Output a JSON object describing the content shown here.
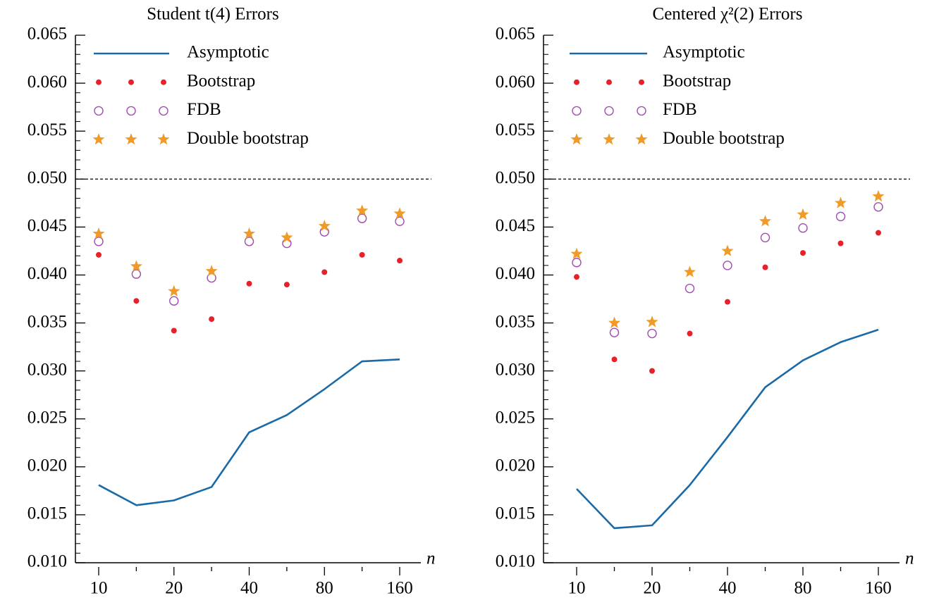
{
  "chart_data": [
    {
      "type": "line",
      "title": "Student t(4) Errors",
      "x_label": "n",
      "categories": [
        "10",
        null,
        "20",
        null,
        "40",
        null,
        "80",
        null,
        "160"
      ],
      "ylim": [
        0.01,
        0.065
      ],
      "yticks": [
        {
          "value": 0.01,
          "label": "0.010"
        },
        {
          "value": 0.015,
          "label": "0.015"
        },
        {
          "value": 0.02,
          "label": "0.020"
        },
        {
          "value": 0.025,
          "label": "0.025"
        },
        {
          "value": 0.03,
          "label": "0.030"
        },
        {
          "value": 0.035,
          "label": "0.035"
        },
        {
          "value": 0.04,
          "label": "0.040"
        },
        {
          "value": 0.045,
          "label": "0.045"
        },
        {
          "value": 0.05,
          "label": "0.050"
        },
        {
          "value": 0.055,
          "label": "0.055"
        },
        {
          "value": 0.06,
          "label": "0.060"
        },
        {
          "value": 0.065,
          "label": "0.065"
        }
      ],
      "reference_line": 0.05,
      "legend": "upper left",
      "series": [
        {
          "name": "Asymptotic",
          "marker": "line",
          "color": "#1a6aa8",
          "values": [
            0.0181,
            0.016,
            0.0165,
            0.0179,
            0.0236,
            0.0254,
            0.0281,
            0.031,
            0.0312
          ]
        },
        {
          "name": "Bootstrap",
          "marker": "dot",
          "color": "#e8202a",
          "values": [
            0.0421,
            0.0373,
            0.0342,
            0.0354,
            0.0391,
            0.039,
            0.0403,
            0.0421,
            0.0415
          ]
        },
        {
          "name": "FDB",
          "marker": "circle",
          "color": "#a04cb0",
          "values": [
            0.0435,
            0.0401,
            0.0373,
            0.0397,
            0.0435,
            0.0433,
            0.0445,
            0.0459,
            0.0456
          ]
        },
        {
          "name": "Double bootstrap",
          "marker": "star",
          "color": "#f09a28",
          "values": [
            0.0443,
            0.0409,
            0.0383,
            0.0404,
            0.0443,
            0.0439,
            0.0451,
            0.0467,
            0.0464
          ]
        }
      ]
    },
    {
      "type": "line",
      "title": "Centered χ²(2) Errors",
      "x_label": "n",
      "categories": [
        "10",
        null,
        "20",
        null,
        "40",
        null,
        "80",
        null,
        "160"
      ],
      "ylim": [
        0.01,
        0.065
      ],
      "yticks": [
        {
          "value": 0.01,
          "label": "0.010"
        },
        {
          "value": 0.015,
          "label": "0.015"
        },
        {
          "value": 0.02,
          "label": "0.020"
        },
        {
          "value": 0.025,
          "label": "0.025"
        },
        {
          "value": 0.03,
          "label": "0.030"
        },
        {
          "value": 0.035,
          "label": "0.035"
        },
        {
          "value": 0.04,
          "label": "0.040"
        },
        {
          "value": 0.045,
          "label": "0.045"
        },
        {
          "value": 0.05,
          "label": "0.050"
        },
        {
          "value": 0.055,
          "label": "0.055"
        },
        {
          "value": 0.06,
          "label": "0.060"
        },
        {
          "value": 0.065,
          "label": "0.065"
        }
      ],
      "reference_line": 0.05,
      "legend": "upper left",
      "series": [
        {
          "name": "Asymptotic",
          "marker": "line",
          "color": "#1a6aa8",
          "values": [
            0.0177,
            0.0136,
            0.0139,
            0.0181,
            0.0231,
            0.0283,
            0.0311,
            0.033,
            0.0343
          ]
        },
        {
          "name": "Bootstrap",
          "marker": "dot",
          "color": "#e8202a",
          "values": [
            0.0398,
            0.0312,
            0.03,
            0.0339,
            0.0372,
            0.0408,
            0.0423,
            0.0433,
            0.0444
          ]
        },
        {
          "name": "FDB",
          "marker": "circle",
          "color": "#a04cb0",
          "values": [
            0.0413,
            0.034,
            0.0339,
            0.0386,
            0.041,
            0.0439,
            0.0449,
            0.0461,
            0.0471
          ]
        },
        {
          "name": "Double bootstrap",
          "marker": "star",
          "color": "#f09a28",
          "values": [
            0.0422,
            0.035,
            0.0351,
            0.0403,
            0.0425,
            0.0456,
            0.0463,
            0.0475,
            0.0482
          ]
        }
      ]
    }
  ]
}
